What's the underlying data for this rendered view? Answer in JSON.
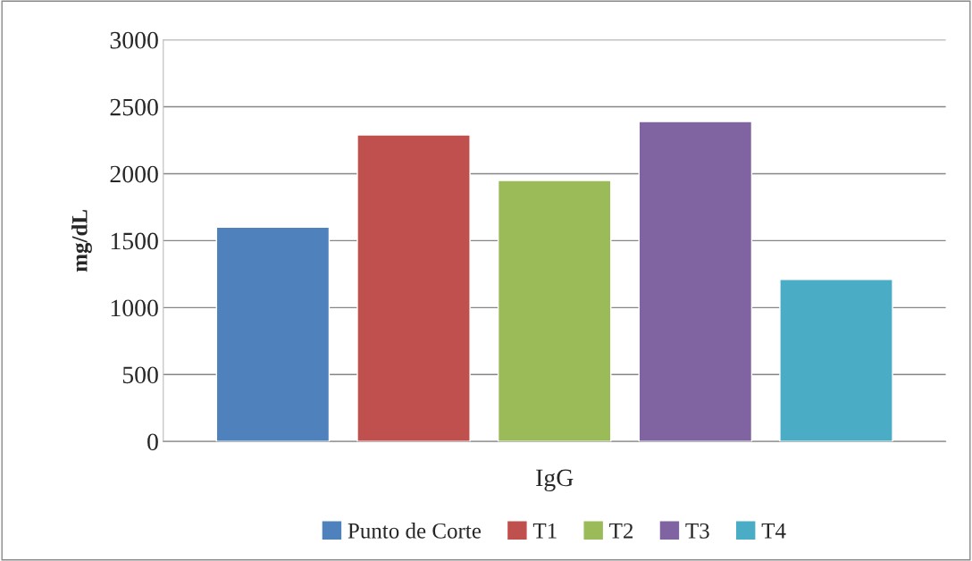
{
  "chart_data": {
    "type": "bar",
    "ylabel": "mg/dL",
    "categories": [
      "IgG"
    ],
    "series": [
      {
        "name": "Punto de Corte",
        "color": "#4f81bd",
        "values": [
          1600
        ]
      },
      {
        "name": "T1",
        "color": "#c0504d",
        "values": [
          2290
        ]
      },
      {
        "name": "T2",
        "color": "#9bbb59",
        "values": [
          1950
        ]
      },
      {
        "name": "T3",
        "color": "#8064a2",
        "values": [
          2390
        ]
      },
      {
        "name": "T4",
        "color": "#4bacc6",
        "values": [
          1210
        ]
      }
    ],
    "ylim": [
      0,
      3000
    ],
    "yticks": [
      0,
      500,
      1000,
      1500,
      2000,
      2500,
      3000
    ],
    "grid": "y",
    "legend": "bottom"
  }
}
